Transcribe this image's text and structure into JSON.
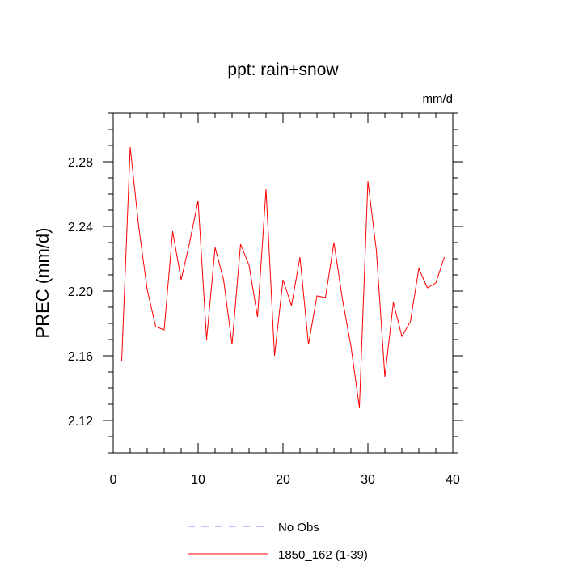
{
  "chart_data": {
    "type": "line",
    "title": "ppt: rain+snow",
    "units_label": "mm/d",
    "ylabel": "PREC  (mm/d)",
    "xlabel": "",
    "xlim": [
      0,
      40
    ],
    "ylim": [
      2.1,
      2.31
    ],
    "xticks": [
      0,
      10,
      20,
      30,
      40
    ],
    "yticks": [
      2.12,
      2.16,
      2.2,
      2.24,
      2.28
    ],
    "grid": false,
    "legend_position": "bottom",
    "series": [
      {
        "name": "No Obs",
        "color": "#8080ff",
        "dash": true,
        "x": [],
        "values": []
      },
      {
        "name": "1850_162 (1-39)",
        "color": "#ff0000",
        "dash": false,
        "x": [
          1,
          2,
          3,
          4,
          5,
          6,
          7,
          8,
          9,
          10,
          11,
          12,
          13,
          14,
          15,
          16,
          17,
          18,
          19,
          20,
          21,
          22,
          23,
          24,
          25,
          26,
          27,
          28,
          29,
          30,
          31,
          32,
          33,
          34,
          35,
          36,
          37,
          38,
          39
        ],
        "values": [
          2.157,
          2.289,
          2.24,
          2.201,
          2.178,
          2.176,
          2.237,
          2.207,
          2.23,
          2.256,
          2.17,
          2.227,
          2.207,
          2.167,
          2.229,
          2.216,
          2.184,
          2.263,
          2.16,
          2.207,
          2.191,
          2.221,
          2.167,
          2.197,
          2.196,
          2.23,
          2.195,
          2.166,
          2.128,
          2.268,
          2.225,
          2.147,
          2.193,
          2.172,
          2.181,
          2.214,
          2.202,
          2.205,
          2.221
        ]
      }
    ]
  }
}
